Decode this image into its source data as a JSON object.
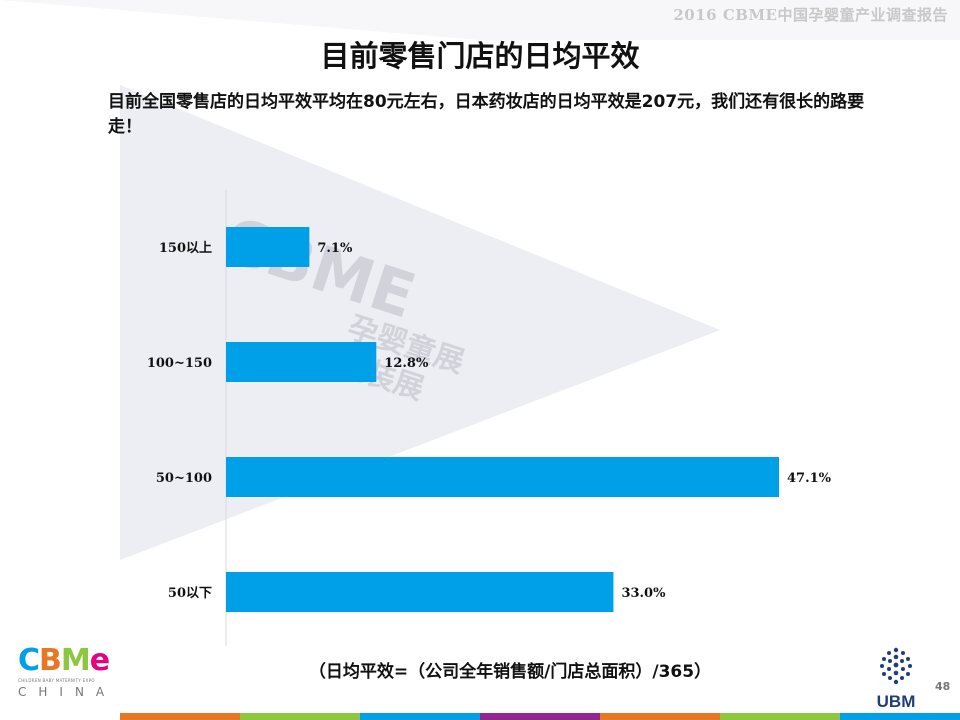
{
  "header": {
    "report_label": "2016 CBME中国孕婴童产业调查报告"
  },
  "slide": {
    "title": "目前零售门店的日均平效",
    "subtitle": "目前全国零售店的日均平效平均在80元左右，日本药妆店的日均平效是207元，我们还有很长的路要走！",
    "formula": "（日均平效=（公司全年销售额/门店总面积）/365）",
    "page_number": "48"
  },
  "watermark": {
    "brand": "CBME",
    "line1": "孕婴童展",
    "line2": "童装展"
  },
  "logos": {
    "left_brand": "CBME",
    "left_tagline": "CHILDREN BABY MATERNITY EXPO",
    "left_country": "CHINA",
    "right_brand": "UBM"
  },
  "colors": {
    "bar": "#00a0e9",
    "stripe": [
      "#e87722",
      "#8dc63f",
      "#00a0e9",
      "#92278f",
      "#e87722",
      "#8dc63f",
      "#00a0e9"
    ]
  },
  "chart_data": {
    "type": "bar",
    "orientation": "horizontal",
    "categories": [
      "150以上",
      "100~150",
      "50~100",
      "50以下"
    ],
    "values": [
      7.1,
      12.8,
      47.1,
      33.0
    ],
    "value_labels": [
      "7.1%",
      "12.8%",
      "47.1%",
      "33.0%"
    ],
    "unit": "%",
    "xlim": [
      0,
      50
    ],
    "grid": false,
    "legend": "none"
  }
}
